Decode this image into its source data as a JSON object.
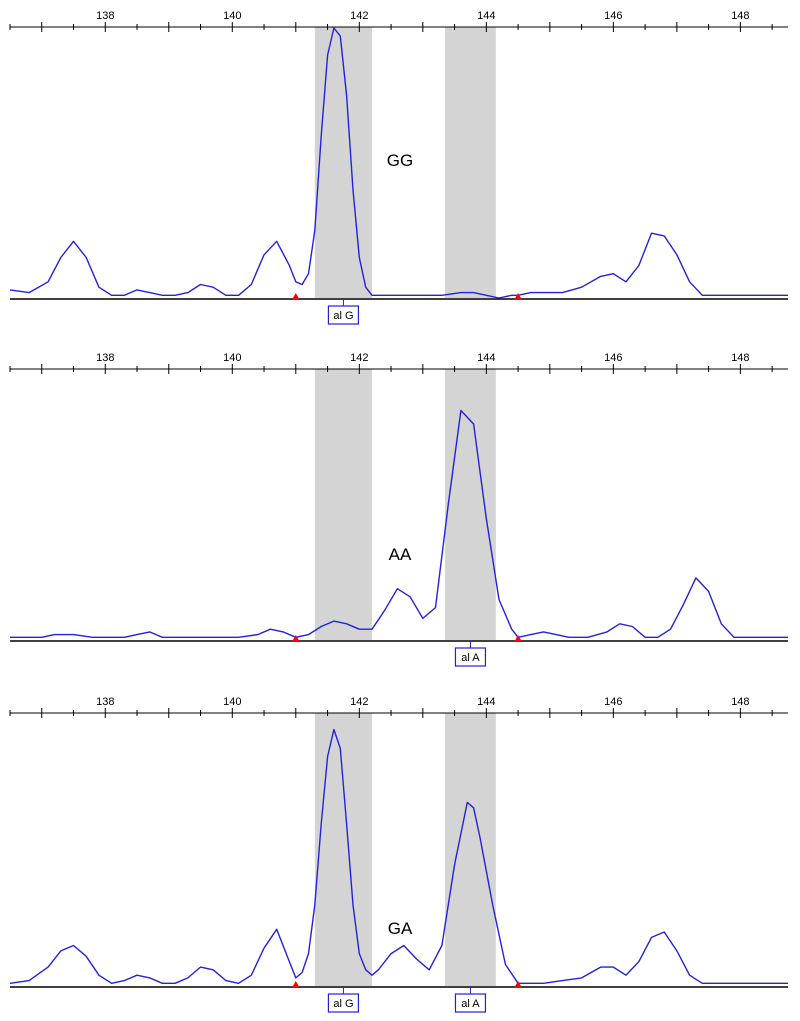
{
  "colors": {
    "trace": "#2222dd",
    "bin": "#d4d4d4",
    "axis": "#000000",
    "marker": "#ff0000",
    "allele_box": "#2222cc"
  },
  "chart_data": [
    {
      "type": "line",
      "genotype": "GG",
      "x_ticks": [
        138,
        140,
        142,
        144,
        146,
        148
      ],
      "xlim": [
        136.5,
        148.75
      ],
      "ylim": [
        0,
        1
      ],
      "bins": [
        [
          141.3,
          142.2
        ],
        [
          143.35,
          144.15
        ]
      ],
      "markers": [
        141.0,
        144.5
      ],
      "alleles": [
        {
          "label": "al G",
          "x": 141.75
        }
      ],
      "series": [
        {
          "x": [
            136.5,
            136.8,
            137.1,
            137.3,
            137.5,
            137.7,
            137.9,
            138.1,
            138.3,
            138.5,
            138.7,
            138.9,
            139.1,
            139.3,
            139.5,
            139.7,
            139.9,
            140.1,
            140.3,
            140.5,
            140.7,
            140.9,
            141.0,
            141.1,
            141.2,
            141.3,
            141.4,
            141.5,
            141.6,
            141.7,
            141.8,
            141.9,
            142.0,
            142.1,
            142.2,
            142.3,
            142.4,
            142.6,
            142.8,
            143.0,
            143.3,
            143.6,
            143.8,
            144.0,
            144.2,
            144.4,
            144.5,
            144.7,
            144.9,
            145.2,
            145.5,
            145.8,
            146.0,
            146.2,
            146.4,
            146.6,
            146.8,
            147.0,
            147.2,
            147.4,
            147.6,
            147.8,
            148.0,
            148.2,
            148.4,
            148.75
          ],
          "y": [
            0.03,
            0.02,
            0.06,
            0.15,
            0.21,
            0.15,
            0.04,
            0.01,
            0.01,
            0.03,
            0.02,
            0.01,
            0.01,
            0.02,
            0.05,
            0.04,
            0.01,
            0.01,
            0.05,
            0.16,
            0.21,
            0.12,
            0.06,
            0.05,
            0.09,
            0.25,
            0.6,
            0.9,
            1.0,
            0.97,
            0.75,
            0.4,
            0.15,
            0.04,
            0.01,
            0.01,
            0.01,
            0.01,
            0.01,
            0.01,
            0.01,
            0.02,
            0.02,
            0.01,
            0.0,
            0.01,
            0.01,
            0.02,
            0.02,
            0.02,
            0.04,
            0.08,
            0.09,
            0.06,
            0.12,
            0.24,
            0.23,
            0.16,
            0.06,
            0.01,
            0.01,
            0.01,
            0.01,
            0.01,
            0.01,
            0.01
          ]
        }
      ]
    },
    {
      "type": "line",
      "genotype": "AA",
      "x_ticks": [
        138,
        140,
        142,
        144,
        146,
        148
      ],
      "xlim": [
        136.5,
        148.75
      ],
      "ylim": [
        0,
        1
      ],
      "bins": [
        [
          141.3,
          142.2
        ],
        [
          143.35,
          144.15
        ]
      ],
      "markers": [
        141.0,
        144.5
      ],
      "alleles": [
        {
          "label": "al A",
          "x": 143.75
        }
      ],
      "series": [
        {
          "x": [
            136.5,
            136.8,
            137.0,
            137.2,
            137.5,
            137.8,
            138.1,
            138.3,
            138.5,
            138.7,
            138.9,
            139.2,
            139.5,
            139.8,
            140.1,
            140.4,
            140.6,
            140.8,
            141.0,
            141.2,
            141.4,
            141.6,
            141.8,
            142.0,
            142.2,
            142.4,
            142.6,
            142.8,
            143.0,
            143.2,
            143.4,
            143.6,
            143.8,
            144.0,
            144.2,
            144.4,
            144.5,
            144.7,
            144.9,
            145.1,
            145.3,
            145.6,
            145.9,
            146.1,
            146.3,
            146.5,
            146.7,
            146.9,
            147.1,
            147.3,
            147.5,
            147.7,
            147.9,
            148.1,
            148.3,
            148.5,
            148.75
          ],
          "y": [
            0.01,
            0.01,
            0.01,
            0.02,
            0.02,
            0.01,
            0.01,
            0.01,
            0.02,
            0.03,
            0.01,
            0.01,
            0.01,
            0.01,
            0.01,
            0.02,
            0.04,
            0.03,
            0.01,
            0.02,
            0.05,
            0.07,
            0.06,
            0.04,
            0.04,
            0.11,
            0.19,
            0.16,
            0.08,
            0.12,
            0.5,
            0.85,
            0.8,
            0.45,
            0.15,
            0.04,
            0.01,
            0.02,
            0.03,
            0.02,
            0.01,
            0.01,
            0.03,
            0.06,
            0.05,
            0.01,
            0.01,
            0.04,
            0.13,
            0.23,
            0.18,
            0.06,
            0.01,
            0.01,
            0.01,
            0.01,
            0.01
          ]
        }
      ]
    },
    {
      "type": "line",
      "genotype": "GA",
      "x_ticks": [
        138,
        140,
        142,
        144,
        146,
        148
      ],
      "xlim": [
        136.5,
        148.75
      ],
      "ylim": [
        0,
        1
      ],
      "bins": [
        [
          141.3,
          142.2
        ],
        [
          143.35,
          144.15
        ]
      ],
      "markers": [
        141.0,
        144.5
      ],
      "alleles": [
        {
          "label": "al G",
          "x": 141.75
        },
        {
          "label": "al A",
          "x": 143.75
        }
      ],
      "series": [
        {
          "x": [
            136.5,
            136.8,
            137.1,
            137.3,
            137.5,
            137.7,
            137.9,
            138.1,
            138.3,
            138.5,
            138.7,
            138.9,
            139.1,
            139.3,
            139.5,
            139.7,
            139.9,
            140.1,
            140.3,
            140.5,
            140.7,
            140.9,
            141.0,
            141.1,
            141.2,
            141.3,
            141.4,
            141.5,
            141.6,
            141.7,
            141.8,
            141.9,
            142.0,
            142.1,
            142.2,
            142.3,
            142.5,
            142.7,
            142.9,
            143.1,
            143.3,
            143.5,
            143.7,
            143.8,
            143.9,
            144.1,
            144.3,
            144.5,
            144.7,
            144.9,
            145.2,
            145.5,
            145.8,
            146.0,
            146.2,
            146.4,
            146.6,
            146.8,
            147.0,
            147.2,
            147.4,
            147.6,
            147.8,
            148.0,
            148.2,
            148.4,
            148.75
          ],
          "y": [
            0.01,
            0.02,
            0.07,
            0.13,
            0.15,
            0.11,
            0.04,
            0.01,
            0.02,
            0.04,
            0.03,
            0.01,
            0.01,
            0.03,
            0.07,
            0.06,
            0.02,
            0.01,
            0.04,
            0.14,
            0.21,
            0.09,
            0.03,
            0.05,
            0.12,
            0.3,
            0.6,
            0.85,
            0.95,
            0.88,
            0.6,
            0.3,
            0.12,
            0.06,
            0.04,
            0.06,
            0.12,
            0.15,
            0.1,
            0.06,
            0.15,
            0.45,
            0.68,
            0.66,
            0.55,
            0.3,
            0.08,
            0.01,
            0.01,
            0.01,
            0.02,
            0.03,
            0.07,
            0.07,
            0.04,
            0.09,
            0.18,
            0.2,
            0.13,
            0.04,
            0.01,
            0.01,
            0.01,
            0.01,
            0.01,
            0.01,
            0.01
          ]
        }
      ]
    }
  ]
}
